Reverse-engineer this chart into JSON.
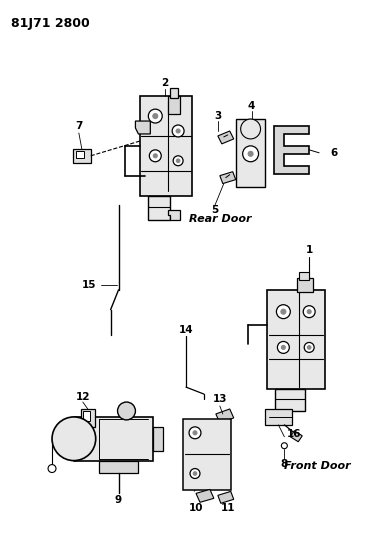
{
  "title": "81J71 2800",
  "background_color": "#ffffff",
  "line_color": "#000000",
  "text_color": "#000000",
  "rear_door_label": "Rear Door",
  "front_door_label": "Front Door",
  "figsize": [
    3.9,
    5.33
  ],
  "dpi": 100,
  "title_fontsize": 9,
  "label_fontsize": 7.5,
  "section_fontsize": 8
}
